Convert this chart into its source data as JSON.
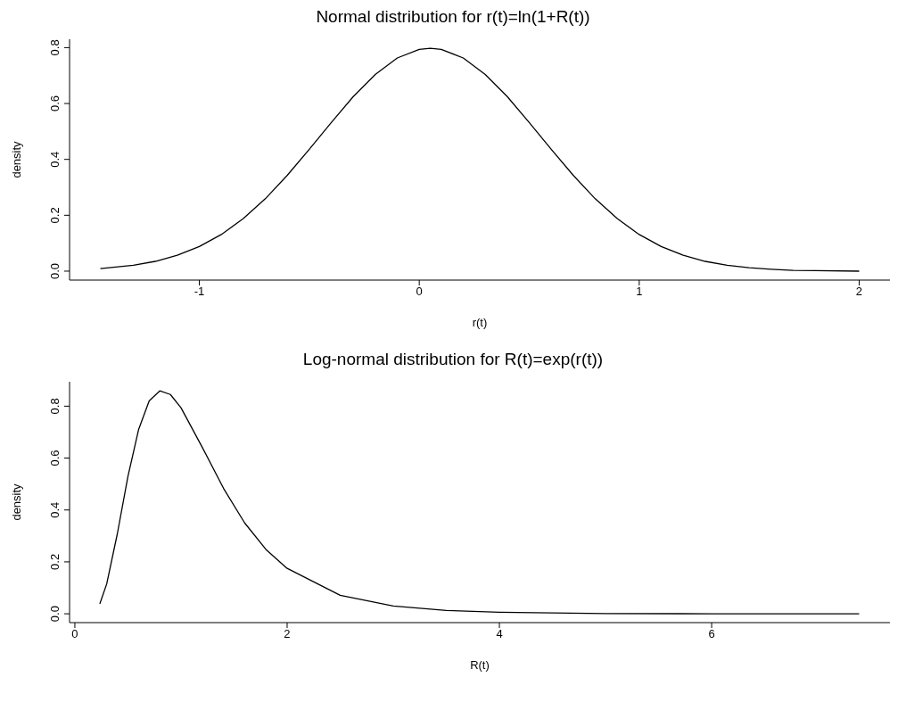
{
  "chart_data": [
    {
      "type": "line",
      "title": "Normal distribution for r(t)=ln(1+R(t))",
      "xlabel": "r(t)",
      "ylabel": "density",
      "x": [
        -1.45,
        -1.3,
        -1.2,
        -1.1,
        -1.0,
        -0.9,
        -0.8,
        -0.7,
        -0.6,
        -0.5,
        -0.4,
        -0.3,
        -0.2,
        -0.1,
        0,
        0.05,
        0.1,
        0.2,
        0.3,
        0.4,
        0.5,
        0.6,
        0.7,
        0.8,
        0.9,
        1.0,
        1.1,
        1.2,
        1.3,
        1.4,
        1.5,
        1.6,
        1.7,
        1.8,
        2.0
      ],
      "values": [
        0.009,
        0.021,
        0.035,
        0.057,
        0.088,
        0.131,
        0.188,
        0.259,
        0.343,
        0.436,
        0.532,
        0.625,
        0.704,
        0.763,
        0.794,
        0.798,
        0.794,
        0.763,
        0.704,
        0.625,
        0.532,
        0.436,
        0.343,
        0.259,
        0.188,
        0.131,
        0.088,
        0.057,
        0.035,
        0.021,
        0.012,
        0.007,
        0.003,
        0.002,
        0.0
      ],
      "color": "#000000",
      "xlim": [
        -1.59,
        2.14
      ],
      "xticks": [
        -1,
        0,
        1,
        2
      ],
      "ylim": [
        -0.032,
        0.83
      ],
      "yticks": [
        {
          "value": 0,
          "label": "0.0"
        },
        {
          "value": 0.2,
          "label": "0.2"
        },
        {
          "value": 0.4,
          "label": "0.4"
        },
        {
          "value": 0.6,
          "label": "0.6"
        },
        {
          "value": 0.8,
          "label": "0.8"
        }
      ]
    },
    {
      "type": "line",
      "title": "Log-normal distribution for R(t)=exp(r(t))",
      "xlabel": "R(t)",
      "ylabel": "density",
      "x": [
        0.235,
        0.3,
        0.4,
        0.5,
        0.6,
        0.7,
        0.8,
        0.9,
        1.0,
        1.2,
        1.4,
        1.6,
        1.8,
        2.0,
        2.5,
        3.0,
        3.5,
        4.0,
        5.0,
        6.0,
        7.39
      ],
      "values": [
        0.038,
        0.115,
        0.308,
        0.529,
        0.709,
        0.82,
        0.859,
        0.845,
        0.794,
        0.642,
        0.484,
        0.35,
        0.248,
        0.175,
        0.071,
        0.03,
        0.013,
        0.006,
        0.001,
        0.0,
        0.0
      ],
      "color": "#000000",
      "xlim": [
        -0.05,
        7.68
      ],
      "xticks": [
        0,
        2,
        4,
        6
      ],
      "ylim": [
        -0.034,
        0.894
      ],
      "yticks": [
        {
          "value": 0,
          "label": "0.0"
        },
        {
          "value": 0.2,
          "label": "0.2"
        },
        {
          "value": 0.4,
          "label": "0.4"
        },
        {
          "value": 0.6,
          "label": "0.6"
        },
        {
          "value": 0.8,
          "label": "0.8"
        }
      ]
    }
  ]
}
